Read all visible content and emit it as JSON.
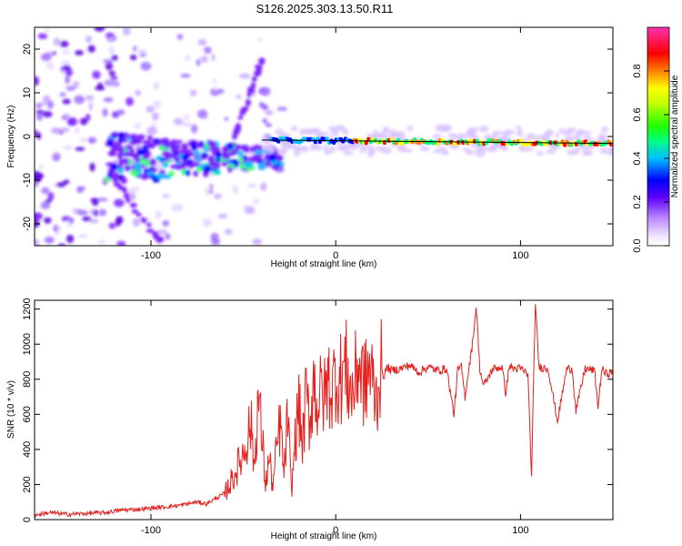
{
  "title": "S126.2025.303.13.50.R11",
  "chart_data": [
    {
      "type": "heatmap",
      "name": "spectrogram",
      "xlabel": "Height of straight line (km)",
      "ylabel": "Frequency (Hz)",
      "xlim": [
        -163,
        150
      ],
      "ylim": [
        -25,
        25
      ],
      "xticks": [
        -100,
        0,
        100
      ],
      "xtick_labels": [
        "-100",
        "0",
        "100"
      ],
      "yticks": [
        20,
        10,
        0,
        -10,
        -20
      ],
      "ytick_labels": [
        "20",
        "10",
        "0",
        "-10",
        "-20"
      ],
      "fit_line": {
        "x": [
          -40,
          150
        ],
        "y": [
          -0.8,
          -1.6
        ],
        "color": "#000000"
      },
      "colorbar": {
        "label": "Normalized spectral amplitude",
        "range": [
          0,
          1
        ],
        "ticks": [
          0.0,
          0.2,
          0.4,
          0.6,
          0.8
        ],
        "tick_labels": [
          "0.0",
          "0.2",
          "0.4",
          "0.6",
          "0.8"
        ],
        "colors": [
          "#ffffff",
          "#e8d8ff",
          "#b080ff",
          "#8000ff",
          "#0000ff",
          "#00c0ff",
          "#00ff80",
          "#40ff00",
          "#c0ff00",
          "#ffff00",
          "#ff8000",
          "#ff0000",
          "#ff0080",
          "#ff40c0"
        ]
      }
    },
    {
      "type": "line",
      "name": "snr",
      "xlabel": "Height of straight line (km)",
      "ylabel": "SNR (10 * v/v)",
      "xlim": [
        -163,
        150
      ],
      "ylim": [
        0,
        1250
      ],
      "xticks": [
        -100,
        0,
        100
      ],
      "xtick_labels": [
        "-100",
        "0",
        "100"
      ],
      "yticks": [
        0,
        200,
        400,
        600,
        800,
        1000,
        1200
      ],
      "ytick_labels": [
        "0",
        "200",
        "400",
        "600",
        "800",
        "1000",
        "1200"
      ],
      "color": "#e8201e",
      "series": [
        {
          "name": "SNR",
          "x": [
            -163,
            -155,
            -145,
            -135,
            -125,
            -115,
            -105,
            -95,
            -85,
            -75,
            -70,
            -65,
            -60,
            -55,
            -50,
            -46,
            -44,
            -42,
            -40,
            -38,
            -36,
            -34,
            -32,
            -30,
            -28,
            -26,
            -24,
            -22,
            -20,
            -18,
            -16,
            -14,
            -12,
            -10,
            -8,
            -6,
            -4,
            -2,
            0,
            2,
            4,
            6,
            8,
            10,
            12,
            14,
            16,
            18,
            20,
            22,
            24,
            26,
            28,
            30,
            35,
            40,
            45,
            50,
            55,
            60,
            64,
            66,
            68,
            70,
            72,
            74,
            76,
            78,
            80,
            85,
            90,
            92,
            94,
            96,
            100,
            104,
            106,
            108,
            110,
            115,
            120,
            125,
            128,
            130,
            135,
            140,
            142,
            144,
            146,
            150
          ],
          "y": [
            25,
            40,
            30,
            35,
            40,
            55,
            60,
            70,
            80,
            100,
            90,
            120,
            150,
            250,
            380,
            550,
            300,
            700,
            480,
            200,
            350,
            180,
            400,
            550,
            250,
            600,
            150,
            450,
            650,
            420,
            700,
            550,
            800,
            650,
            720,
            700,
            800,
            720,
            850,
            780,
            860,
            850,
            720,
            750,
            900,
            820,
            760,
            870,
            780,
            680,
            860,
            820,
            870,
            850,
            860,
            880,
            840,
            870,
            850,
            860,
            600,
            850,
            870,
            700,
            860,
            1000,
            1220,
            860,
            760,
            860,
            870,
            720,
            880,
            860,
            860,
            830,
            240,
            1240,
            870,
            860,
            560,
            860,
            860,
            620,
            860,
            850,
            640,
            860,
            830,
            840
          ]
        }
      ]
    }
  ]
}
